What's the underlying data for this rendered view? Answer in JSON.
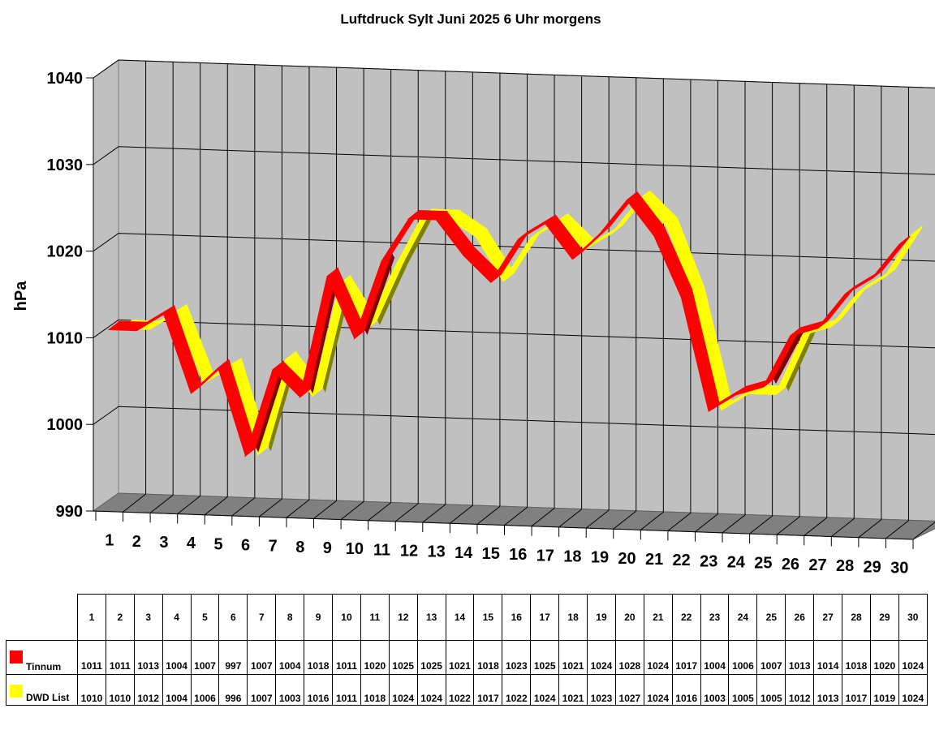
{
  "title": "Luftdruck Sylt Juni 2025 6 Uhr morgens",
  "chart_data": {
    "type": "line",
    "style": "3d-ribbon",
    "title": "Luftdruck Sylt Juni 2025 6 Uhr morgens",
    "xlabel": "",
    "ylabel": "hPa",
    "ylim": [
      990,
      1040
    ],
    "yticks": [
      990,
      1000,
      1010,
      1020,
      1030,
      1040
    ],
    "grid": true,
    "legend_position": "data-table-below",
    "categories": [
      "1",
      "2",
      "3",
      "4",
      "5",
      "6",
      "7",
      "8",
      "9",
      "10",
      "11",
      "12",
      "13",
      "14",
      "15",
      "16",
      "17",
      "18",
      "19",
      "20",
      "21",
      "22",
      "23",
      "24",
      "25",
      "26",
      "27",
      "28",
      "29",
      "30"
    ],
    "series": [
      {
        "name": "Tinnum",
        "color": "#ff0000",
        "values": [
          1011,
          1011,
          1013,
          1004,
          1007,
          997,
          1007,
          1004,
          1018,
          1011,
          1020,
          1025,
          1025,
          1021,
          1018,
          1023,
          1025,
          1021,
          1024,
          1028,
          1024,
          1017,
          1004,
          1006,
          1007,
          1013,
          1014,
          1018,
          1020,
          1024
        ]
      },
      {
        "name": "DWD List",
        "color": "#ffff00",
        "values": [
          1010,
          1010,
          1012,
          1004,
          1006,
          996,
          1007,
          1003,
          1016,
          1011,
          1018,
          1024,
          1024,
          1022,
          1017,
          1022,
          1024,
          1021,
          1023,
          1027,
          1024,
          1016,
          1003,
          1005,
          1005,
          1012,
          1013,
          1017,
          1019,
          1024
        ]
      }
    ]
  },
  "colors": {
    "wall": "#c0c0c0",
    "floor": "#808080",
    "grid": "#000000",
    "tinnum": "#ff0000",
    "tinnum_shade": "#800000",
    "dwd": "#ffff00",
    "dwd_shade": "#808000"
  }
}
